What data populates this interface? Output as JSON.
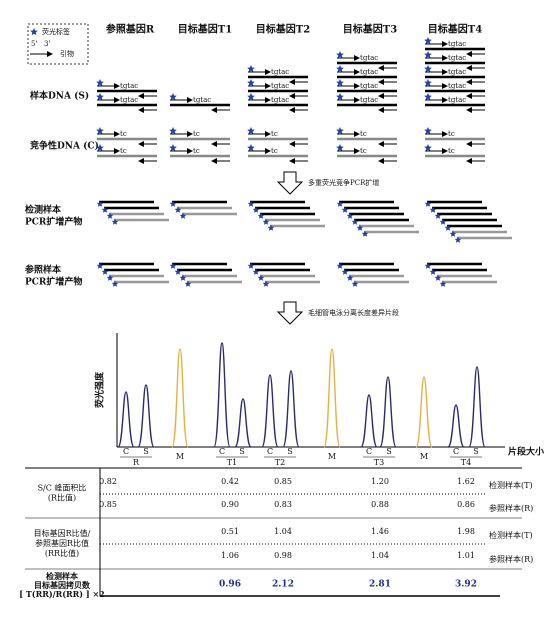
{
  "legend": {
    "fluor_tag": "荧光标签",
    "five_prime": "5'",
    "three_prime": "3'",
    "primer": "引物"
  },
  "columns": [
    "参照基因R",
    "目标基因T1",
    "目标基因T2",
    "目标基因T3",
    "目标基因T4"
  ],
  "rows": {
    "sample_dna": "样本DNA (S)",
    "competitor_dna": "竞争性DNA (C)",
    "test_pcr": [
      "检测样本",
      "PCR扩增产物"
    ],
    "ref_pcr": [
      "参照样本",
      "PCR扩增产物"
    ]
  },
  "seq": {
    "sample": "tgtac",
    "competitor": "tc"
  },
  "steps": [
    "多重荧光竞争PCR扩增",
    "毛细管电泳分离长度差异片段"
  ],
  "electropherogram": {
    "y_label": "荧光强度",
    "x_label": "片段大小",
    "peak_labels": [
      "C",
      "S"
    ],
    "groups": [
      "R",
      "T1",
      "T2",
      "T3",
      "T4"
    ],
    "marker": "M"
  },
  "table": {
    "row_groups": [
      {
        "label": [
          "S/C 峰面积比",
          "(R比值)"
        ],
        "test": [
          "0.82",
          "0.42",
          "0.85",
          "1.20",
          "1.62"
        ],
        "ref": [
          "0.85",
          "0.90",
          "0.83",
          "0.88",
          "0.86"
        ]
      },
      {
        "label": [
          "目标基因R比值/",
          "参照基因R比值",
          "(RR比值)"
        ],
        "test": [
          "0.51",
          "1.04",
          "1.46",
          "1.98"
        ],
        "ref": [
          "1.06",
          "0.98",
          "1.04",
          "1.01"
        ]
      }
    ],
    "row_labels": {
      "test": "检测样本(T)",
      "ref": "参照样本(R)"
    },
    "copy_number": {
      "label": [
        "检测样本",
        "目标基因拷贝数",
        "[ T(RR)/R(RR) ] ×2"
      ],
      "values": [
        "0.96",
        "2.12",
        "2.81",
        "3.92"
      ]
    }
  }
}
